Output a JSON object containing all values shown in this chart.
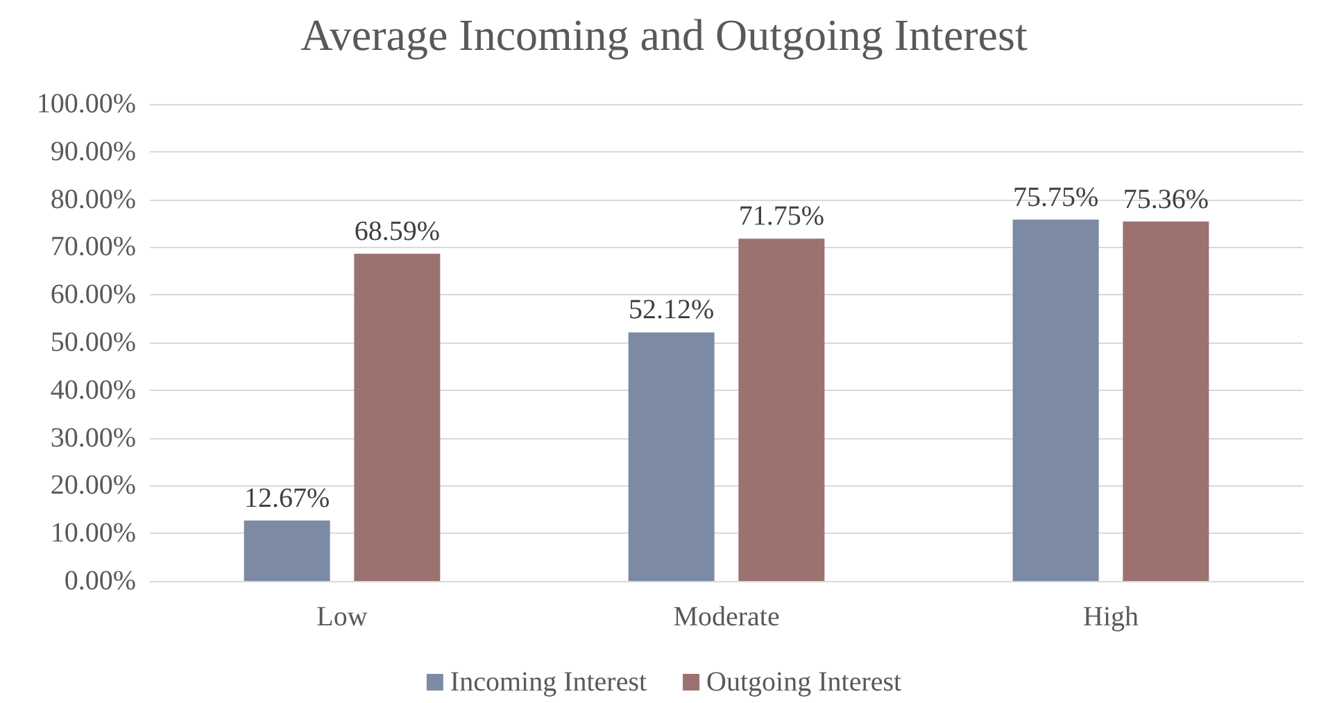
{
  "chart_data": {
    "type": "bar",
    "title": "Average Incoming and Outgoing Interest",
    "categories": [
      "Low",
      "Moderate",
      "High"
    ],
    "series": [
      {
        "name": "Incoming Interest",
        "color": "#7d8aa3",
        "values": [
          12.67,
          52.12,
          75.75
        ],
        "value_labels": [
          "12.67%",
          "52.12%",
          "75.75%"
        ]
      },
      {
        "name": "Outgoing Interest",
        "color": "#9b7270",
        "values": [
          68.59,
          71.75,
          75.36
        ],
        "value_labels": [
          "68.59%",
          "71.75%",
          "75.36%"
        ]
      }
    ],
    "ylim": [
      0,
      100
    ],
    "yticks": [
      {
        "value": 0,
        "label": "0.00%"
      },
      {
        "value": 10,
        "label": "10.00%"
      },
      {
        "value": 20,
        "label": "20.00%"
      },
      {
        "value": 30,
        "label": "30.00%"
      },
      {
        "value": 40,
        "label": "40.00%"
      },
      {
        "value": 50,
        "label": "50.00%"
      },
      {
        "value": 60,
        "label": "60.00%"
      },
      {
        "value": 70,
        "label": "70.00%"
      },
      {
        "value": 80,
        "label": "80.00%"
      },
      {
        "value": 90,
        "label": "90.00%"
      },
      {
        "value": 100,
        "label": "100.00%"
      }
    ],
    "grid": "y",
    "legend": "bottom"
  }
}
